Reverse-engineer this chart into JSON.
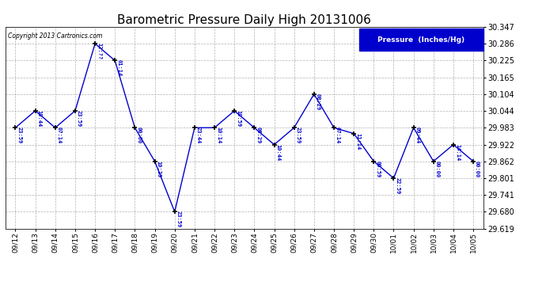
{
  "title": "Barometric Pressure Daily High 20131006",
  "legend_label": "Pressure  (Inches/Hg)",
  "copyright": "Copyright 2013 Cartronics.com",
  "background_color": "#ffffff",
  "line_color": "#0000cc",
  "marker_color": "#000000",
  "legend_bg": "#0000cc",
  "legend_fg": "#ffffff",
  "annot_color": "#0000cc",
  "grid_color": "#aaaaaa",
  "ylim": [
    29.619,
    30.347
  ],
  "yticks": [
    29.619,
    29.68,
    29.741,
    29.801,
    29.862,
    29.922,
    29.983,
    30.044,
    30.104,
    30.165,
    30.225,
    30.286,
    30.347
  ],
  "dates": [
    "09/12",
    "09/13",
    "09/14",
    "09/15",
    "09/16",
    "09/17",
    "09/18",
    "09/19",
    "09/20",
    "09/21",
    "09/22",
    "09/23",
    "09/24",
    "09/25",
    "09/26",
    "09/27",
    "09/28",
    "09/29",
    "09/30",
    "10/01",
    "10/02",
    "10/03",
    "10/04",
    "10/05"
  ],
  "values": [
    29.983,
    30.044,
    29.983,
    30.044,
    30.286,
    30.225,
    29.983,
    29.862,
    29.68,
    29.983,
    29.983,
    30.044,
    29.983,
    29.922,
    29.983,
    30.104,
    29.983,
    29.962,
    29.862,
    29.801,
    29.983,
    29.862,
    29.922,
    29.862
  ],
  "annotations": [
    "23:59",
    "10:44",
    "07:14",
    "23:59",
    "12:??",
    "01:14",
    "00:00",
    "10:29",
    "23:59",
    "23:44",
    "10:14",
    "10:59",
    "06:29",
    "10:44",
    "23:59",
    "08:29",
    "07:14",
    "11:14",
    "00:59",
    "22:59",
    "09:44",
    "00:00",
    "14:14",
    "00:00"
  ],
  "title_fontsize": 11,
  "tick_fontsize": 6.5,
  "ytick_fontsize": 7,
  "annot_fontsize": 5.0,
  "copyright_fontsize": 5.5,
  "legend_fontsize": 6.5,
  "linewidth": 1.0,
  "markersize": 5,
  "markeredgewidth": 1.2
}
